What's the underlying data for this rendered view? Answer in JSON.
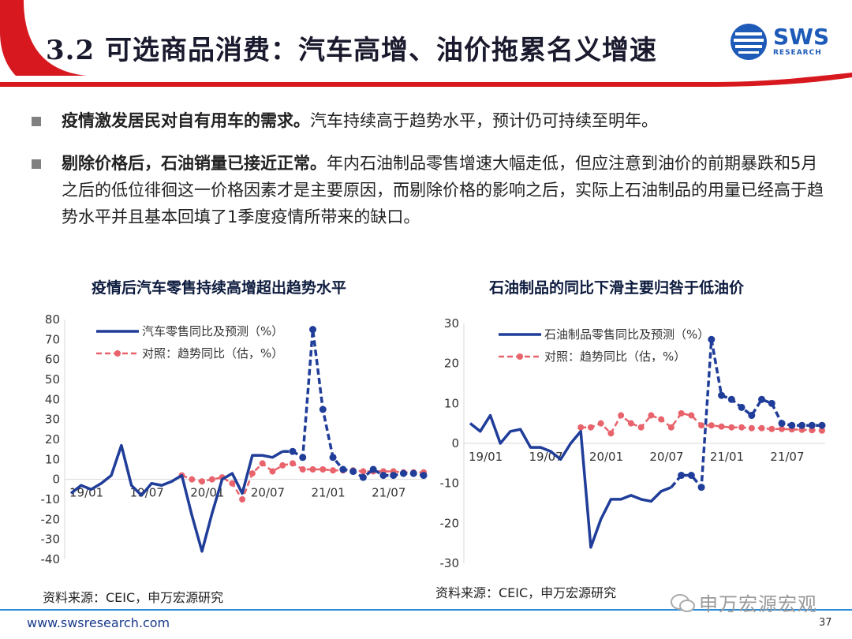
{
  "header": {
    "title": "3.2 可选商品消费：汽车高增、油价拖累名义增速",
    "logo_text": "SWS",
    "logo_sub": "RESEARCH",
    "colors": {
      "red": "#d7181f",
      "blue": "#1e5bb8"
    }
  },
  "bullets": [
    {
      "bold": "疫情激发居民对自有用车的需求。",
      "text": "汽车持续高于趋势水平，预计仍可持续至明年。"
    },
    {
      "bold": "剔除价格后，石油销量已接近正常。",
      "text": "年内石油制品零售增速大幅走低，但应注意到油价的前期暴跌和5月之后的低位徘徊这一价格因素才是主要原因，而剔除价格的影响之后，实际上石油制品的用量已经高于趋势水平并且基本回填了1季度疫情所带来的缺口。"
    }
  ],
  "chart_data": [
    {
      "type": "line",
      "title": "疫情后汽车零售持续高增超出趋势水平",
      "ylim": [
        -40,
        80
      ],
      "yticks": [
        80,
        70,
        60,
        50,
        40,
        30,
        20,
        10,
        0,
        -10,
        -20,
        -30,
        -40
      ],
      "xticks": [
        {
          "label": "19/01",
          "i": 0
        },
        {
          "label": "19/07",
          "i": 6
        },
        {
          "label": "20/01",
          "i": 12
        },
        {
          "label": "20/07",
          "i": 18
        },
        {
          "label": "21/01",
          "i": 24
        },
        {
          "label": "21/07",
          "i": 30
        }
      ],
      "legend_position": "top-left",
      "series": [
        {
          "name": "汽车零售同比及预测（%）",
          "color": "#1f3d99",
          "solid_x": [
            0,
            1,
            2,
            3,
            4,
            5,
            6,
            7,
            8,
            9,
            10,
            11,
            12,
            13,
            14,
            15,
            16,
            17,
            18,
            19,
            20,
            21
          ],
          "solid_y": [
            -7,
            -3,
            -5,
            -2,
            2,
            17,
            -3,
            -8,
            -2,
            -3,
            -1,
            2,
            -18,
            -36,
            -17,
            0,
            3,
            -7,
            12,
            12,
            11,
            14
          ],
          "forecast_x": [
            21,
            22,
            23,
            24,
            25,
            26,
            27,
            28,
            29,
            30,
            31,
            32,
            33,
            34,
            35
          ],
          "forecast_y": [
            14,
            14,
            11,
            75,
            35,
            11,
            5,
            4,
            1,
            5,
            2,
            2,
            3,
            3,
            2
          ]
        },
        {
          "name": "对照：趋势同比（估，%）",
          "color": "#e8636b",
          "x": [
            11,
            12,
            13,
            14,
            15,
            16,
            17,
            18,
            19,
            20,
            21,
            22,
            23,
            24,
            25,
            26,
            27,
            28,
            29,
            30,
            31,
            32,
            33,
            34,
            35
          ],
          "y": [
            2,
            0,
            -1,
            0,
            1,
            -2,
            -10,
            3,
            8,
            4,
            7,
            8,
            5,
            5,
            5,
            4.5,
            4.5,
            4.5,
            4,
            4,
            4,
            4,
            3.5,
            3.5,
            3.5
          ]
        }
      ]
    },
    {
      "type": "line",
      "title": "石油制品的同比下滑主要归咎于低油价",
      "ylim": [
        -30,
        30
      ],
      "yticks": [
        30,
        20,
        10,
        0,
        -10,
        -20,
        -30
      ],
      "xticks": [
        {
          "label": "19/01",
          "i": 0
        },
        {
          "label": "19/07",
          "i": 6
        },
        {
          "label": "20/01",
          "i": 12
        },
        {
          "label": "20/07",
          "i": 18
        },
        {
          "label": "21/01",
          "i": 24
        },
        {
          "label": "21/07",
          "i": 30
        }
      ],
      "legend_position": "top-left",
      "series": [
        {
          "name": "石油制品零售同比及预测（%）",
          "color": "#1f3d99",
          "solid_x": [
            0,
            1,
            2,
            3,
            4,
            5,
            6,
            7,
            8,
            9,
            10,
            11,
            12,
            13,
            14,
            15,
            16,
            17,
            18,
            19,
            20
          ],
          "solid_y": [
            5,
            3,
            7,
            0,
            3,
            3.5,
            -1,
            -1,
            -2,
            -4,
            0,
            3,
            -26,
            -19,
            -14,
            -14,
            -13,
            -14,
            -14.5,
            -12,
            -11
          ],
          "forecast_x": [
            20,
            21,
            22,
            23,
            24,
            25,
            26,
            27,
            28,
            29,
            30,
            31,
            32,
            33,
            34,
            35
          ],
          "forecast_y": [
            -11,
            -8,
            -8,
            -11,
            26,
            12,
            11,
            9,
            7,
            11,
            10,
            5,
            4.5,
            4.5,
            4.5,
            4.5
          ]
        },
        {
          "name": "对照：趋势同比（估，%）",
          "color": "#e8636b",
          "x": [
            11,
            12,
            13,
            14,
            15,
            16,
            17,
            18,
            19,
            20,
            21,
            22,
            23,
            24,
            25,
            26,
            27,
            28,
            29,
            30,
            31,
            32,
            33,
            34,
            35
          ],
          "y": [
            4,
            4,
            5,
            2.5,
            7,
            5,
            4,
            7,
            6,
            4,
            7.5,
            7,
            4.5,
            4.5,
            4.2,
            4,
            4,
            3.8,
            3.8,
            3.6,
            3.6,
            3.5,
            3.4,
            3.3,
            3.2
          ]
        }
      ]
    }
  ],
  "sources": [
    "资料来源：CEIC，申万宏源研究",
    "资料来源：CEIC，申万宏源研究"
  ],
  "footer": {
    "url": "www.swsresearch.com",
    "page": "37",
    "wechat": "申万宏源宏观"
  }
}
